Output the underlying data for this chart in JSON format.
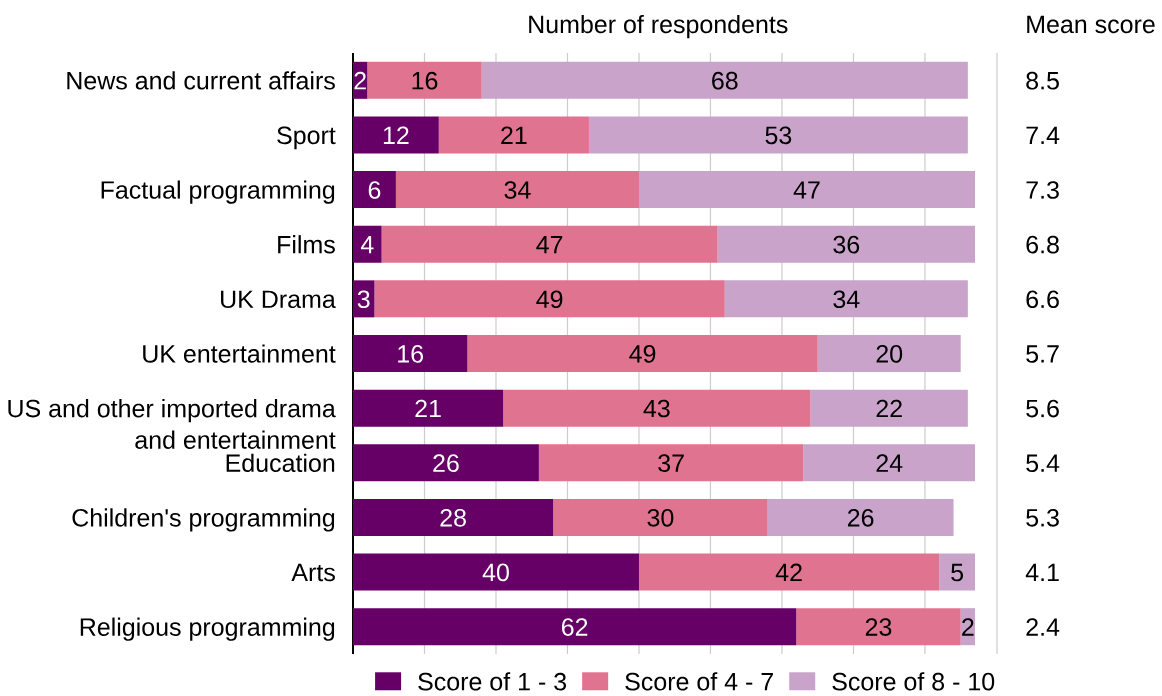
{
  "chart_data": [
    {
      "type": "bar",
      "orientation": "horizontal",
      "stacked": true,
      "title": "Number of respondents",
      "categories": [
        "News and current affairs",
        "Sport",
        "Factual programming",
        "Films",
        "UK Drama",
        "UK entertainment",
        "US and other imported drama and entertainment",
        "Education",
        "Children's programming",
        "Arts",
        "Religious programming"
      ],
      "series": [
        {
          "name": "Score of 1 - 3",
          "color": "#660066",
          "values": [
            2,
            12,
            6,
            4,
            3,
            16,
            21,
            26,
            28,
            40,
            62
          ]
        },
        {
          "name": "Score of 4 - 7",
          "color": "#e0738f",
          "values": [
            16,
            21,
            34,
            47,
            49,
            49,
            43,
            37,
            30,
            42,
            23
          ]
        },
        {
          "name": "Score of 8 - 10",
          "color": "#c9a3ca",
          "values": [
            68,
            53,
            47,
            36,
            34,
            20,
            22,
            24,
            26,
            5,
            2
          ]
        }
      ],
      "grid": "x",
      "legend": "bottom",
      "data_labels": true,
      "tick_labels": "y"
    },
    {
      "type": "other",
      "title": "Mean score",
      "values": [
        8.5,
        7.4,
        7.3,
        6.8,
        6.6,
        5.7,
        5.6,
        5.4,
        5.3,
        4.1,
        2.4
      ],
      "data_labels": true
    }
  ]
}
